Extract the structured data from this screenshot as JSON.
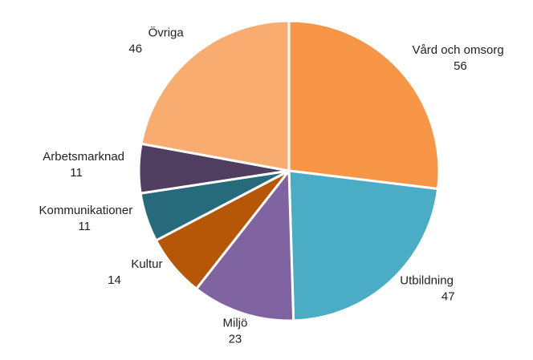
{
  "chart_data": {
    "type": "pie",
    "categories": [
      "Vård och omsorg",
      "Utbildning",
      "Miljö",
      "Kultur",
      "Kommunikationer",
      "Arbetsmarknad",
      "Övriga"
    ],
    "values": [
      56,
      47,
      23,
      14,
      11,
      11,
      46
    ],
    "colors": [
      "#f79646",
      "#4bacc6",
      "#8064a2",
      "#b65708",
      "#276a7c",
      "#4f3e60",
      "#f9ac6f"
    ]
  }
}
